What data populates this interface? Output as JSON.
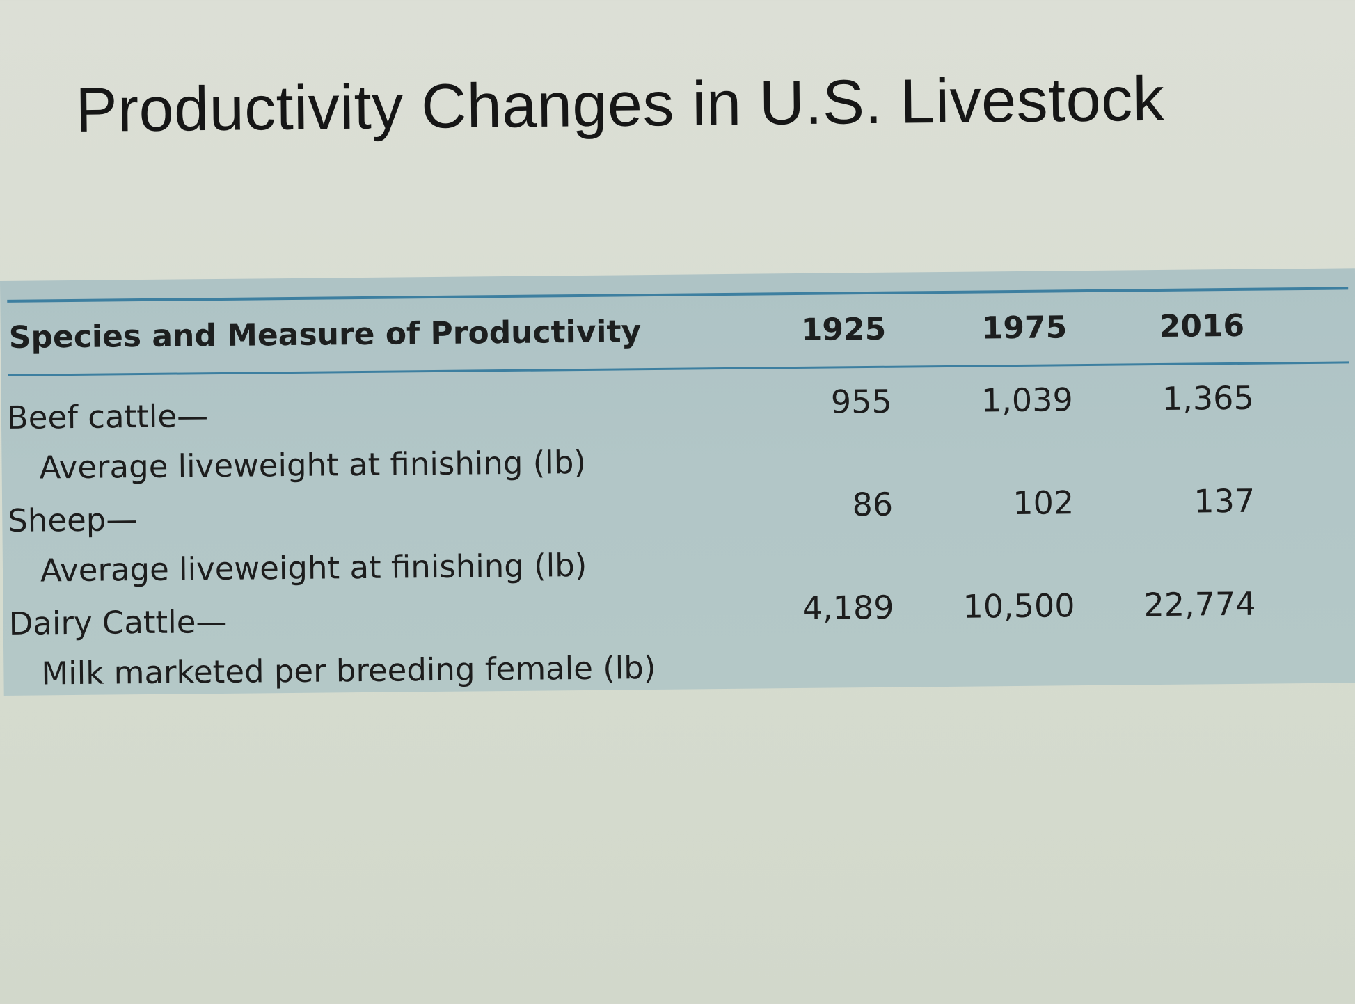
{
  "title": "Productivity Changes in U.S. Livestock",
  "table": {
    "header": {
      "label": "Species and Measure of Productivity",
      "years": [
        "1925",
        "1975",
        "2016"
      ]
    },
    "rows": [
      {
        "species": "Beef cattle—",
        "measure": "Average liveweight at finishing (lb)",
        "values": [
          "955",
          "1,039",
          "1,365"
        ]
      },
      {
        "species": "Sheep—",
        "measure": "Average liveweight at finishing (lb)",
        "values": [
          "86",
          "102",
          "137"
        ]
      },
      {
        "species": "Dairy Cattle—",
        "measure": "Milk marketed per breeding female (lb)",
        "values": [
          "4,189",
          "10,500",
          "22,774"
        ]
      }
    ]
  },
  "colors": {
    "panel": "#b2c6c7",
    "rule": "#3d7fa0",
    "page": "#d8ddd2",
    "text": "#1d1d1d"
  }
}
